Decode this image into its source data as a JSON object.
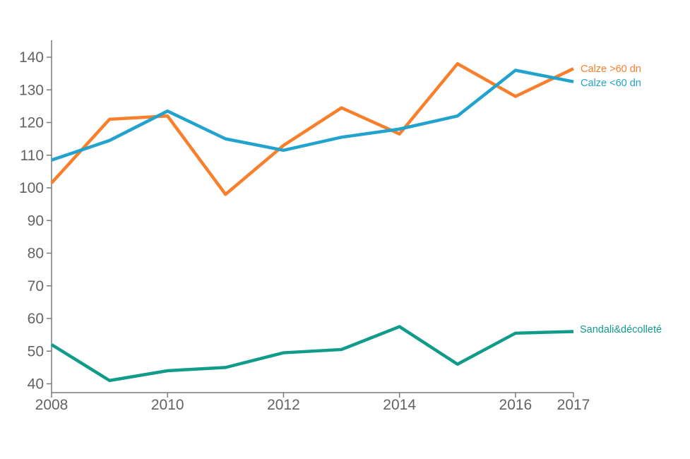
{
  "chart_data": {
    "type": "line",
    "title": "",
    "xlabel": "",
    "ylabel": "",
    "x": [
      2008,
      2009,
      2010,
      2011,
      2012,
      2013,
      2014,
      2015,
      2016,
      2017
    ],
    "x_ticks": [
      2008,
      2010,
      2012,
      2014,
      2016,
      2017
    ],
    "y_ticks": [
      40,
      50,
      60,
      70,
      80,
      90,
      100,
      110,
      120,
      130,
      140
    ],
    "ylim": [
      37,
      145
    ],
    "xlim": [
      2008,
      2017
    ],
    "grid": false,
    "legend_position": "right-end-of-lines",
    "series": [
      {
        "name": "Calze >60 dn",
        "color": "#F8802C",
        "values": [
          101.5,
          121,
          122,
          98,
          113,
          124.5,
          116.5,
          138,
          128,
          136.5
        ]
      },
      {
        "name": "Calze <60 dn",
        "color": "#21A3CE",
        "values": [
          108.5,
          114.5,
          123.5,
          115,
          111.5,
          115.5,
          118,
          122,
          136,
          132.5
        ]
      },
      {
        "name": "Sandali&décolleté",
        "color": "#119B8A",
        "values": [
          52,
          41,
          44,
          45,
          49.5,
          50.5,
          57.5,
          46,
          55.5,
          56
        ]
      }
    ],
    "colors": {
      "axis": "#7a7a7a",
      "tick_label": "#636363",
      "background": "#ffffff"
    }
  }
}
